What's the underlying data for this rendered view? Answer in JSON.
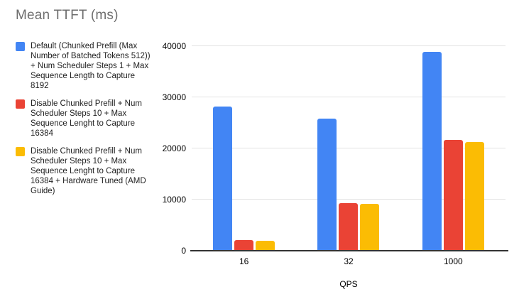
{
  "chart_data": {
    "type": "bar",
    "title": "Mean TTFT (ms)",
    "xlabel": "QPS",
    "ylabel": "",
    "categories": [
      "16",
      "32",
      "1000"
    ],
    "series": [
      {
        "id": "default-chunked-prefill",
        "name": "Default (Chunked Prefill (Max Number of Batched Tokens 512)) + Num Scheduler Steps 1 + Max Sequence Length to Capture 8192",
        "color": "#4285F4",
        "values": [
          28200,
          25800,
          38900
        ]
      },
      {
        "id": "disable-chunked-prefill-nss10",
        "name": "Disable Chunked Prefill + Num Scheduler Steps 10 + Max Sequence Lenght to Capture 16384",
        "color": "#EA4335",
        "values": [
          2050,
          9350,
          21700
        ]
      },
      {
        "id": "disable-chunked-prefill-nss10-hw-tuned",
        "name": "Disable Chunked Prefill + Num Scheduler Steps 10 + Max Sequence Lenght to Capture 16384 + Hardware Tuned (AMD Guide)",
        "color": "#FBBC04",
        "values": [
          1950,
          9150,
          21250
        ]
      }
    ],
    "ylim": [
      0,
      40000
    ],
    "yticks": [
      0,
      10000,
      20000,
      30000,
      40000
    ],
    "grid": true,
    "legend_position": "left"
  },
  "colors": {
    "title_text": "#6e6e6e",
    "legend_text": "#212121",
    "axis_text": "#000000",
    "gridline": "#e3e3e3",
    "axis_line": "#333333"
  }
}
